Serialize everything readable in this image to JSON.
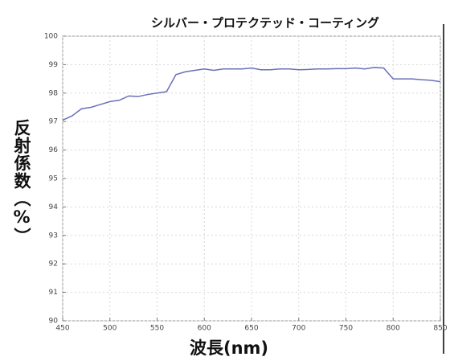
{
  "chart_data": {
    "type": "line",
    "title": "シルバー・プロテクテッド・コーティング",
    "xlabel": "波長(nm)",
    "ylabel": "反射係数（%）",
    "x": [
      450,
      460,
      470,
      480,
      490,
      500,
      510,
      520,
      530,
      540,
      550,
      560,
      570,
      580,
      590,
      600,
      610,
      620,
      630,
      640,
      650,
      660,
      670,
      680,
      690,
      700,
      710,
      720,
      730,
      740,
      750,
      760,
      770,
      780,
      790,
      800,
      810,
      820,
      830,
      840,
      850
    ],
    "series": [
      {
        "name": "シルバー・プロテクテッド・コーティング",
        "color": "#6a70b8",
        "values": [
          97.05,
          97.2,
          97.45,
          97.5,
          97.6,
          97.7,
          97.75,
          97.9,
          97.88,
          97.95,
          98.0,
          98.05,
          98.65,
          98.75,
          98.8,
          98.85,
          98.8,
          98.85,
          98.85,
          98.85,
          98.88,
          98.82,
          98.82,
          98.85,
          98.85,
          98.82,
          98.83,
          98.85,
          98.85,
          98.86,
          98.86,
          98.88,
          98.85,
          98.9,
          98.88,
          98.5,
          98.5,
          98.5,
          98.47,
          98.45,
          98.4
        ]
      }
    ],
    "xlim": [
      450,
      850
    ],
    "ylim": [
      90,
      100
    ],
    "xticks": [
      450,
      500,
      550,
      600,
      650,
      700,
      750,
      800,
      850
    ],
    "yticks": [
      90,
      91,
      92,
      93,
      94,
      95,
      96,
      97,
      98,
      99,
      100
    ],
    "grid": true
  }
}
